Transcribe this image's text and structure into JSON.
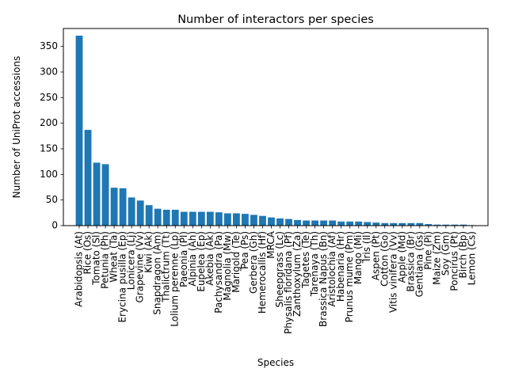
{
  "chart_data": {
    "type": "bar",
    "title": "Number of interactors per species",
    "xlabel": "Species",
    "ylabel": "Number of UniProt accessions",
    "ylim": [
      0,
      385
    ],
    "yticks": [
      0,
      50,
      100,
      150,
      200,
      250,
      300,
      350
    ],
    "grid": false,
    "legend": "none",
    "bar_color": "#1f77b4",
    "categories": [
      "Arabidopsis (At)",
      "Rice (Os)",
      "Tomato (Sl)",
      "Petunia (Ph)",
      "Wheat (Ta)",
      "Erycina pusilla (Ep)",
      "Lonicera (Lj)",
      "Grapevine (Vv)",
      "Kiwi (Ak)",
      "Snapdragon (Am)",
      "Thalictrum (Tt)",
      "Lolium perenne (Lp)",
      "Paeonia (Pl)",
      "Alpinia (Ah)",
      "Eupelea (Ep)",
      "Akebia (Ak)",
      "Pachysandra (Pa)",
      "Magnolia (Mw)",
      "Marigold (Te)",
      "Pea (Ps)",
      "Gerbera (Gh)",
      "Hemerocallis (Hf)",
      "MRCA",
      "Sheepgrass (Lc)",
      "Physalis floridana (Pf)",
      "Zanthoxylum (Za)",
      "Tagetes (Te)",
      "Tarenaya (Th)",
      "Brassica Napus (Bn)",
      "Aristolochia (Af)",
      "Habenaria (Hr)",
      "Prunus mume (Pm)",
      "Mango (Mi)",
      "Iris (Il)",
      "Aspen (Pt)",
      "Cotton (Go)",
      "Vitis vinifera (Vv)",
      "Apple (Md)",
      "Brassica (Br)",
      "Gentiana (Gs)",
      "Pine (Pi)",
      "Maize (Zm)",
      "Soy (Gm)",
      "Poncirus (Pt)",
      "Birch (Bp)",
      "Lemon (Cs)"
    ],
    "values": [
      371,
      187,
      123,
      120,
      74,
      73,
      55,
      49,
      40,
      33,
      31,
      31,
      27,
      27,
      27,
      27,
      26,
      24,
      24,
      23,
      21,
      19,
      16,
      14,
      13,
      11,
      10,
      10,
      10,
      10,
      8,
      8,
      8,
      7,
      6,
      5,
      5,
      5,
      5,
      5,
      3,
      2,
      2,
      2,
      2,
      1
    ]
  }
}
